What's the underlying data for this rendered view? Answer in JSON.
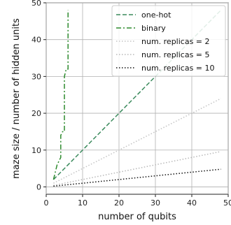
{
  "chart_data": {
    "type": "line",
    "title": "",
    "xlabel": "number of qubits",
    "ylabel": "maze size / number of hidden units",
    "xlim": [
      0,
      50
    ],
    "ylim": [
      -2,
      50
    ],
    "xticks": [
      0,
      10,
      20,
      30,
      40,
      50
    ],
    "yticks": [
      0,
      10,
      20,
      30,
      40,
      50
    ],
    "grid": true,
    "legend_position": "top-right",
    "series": [
      {
        "name": "one-hot",
        "color": "#3a8a5c",
        "style": "dashed",
        "x": [
          2,
          48
        ],
        "y": [
          2,
          48
        ]
      },
      {
        "name": "binary",
        "color": "#2e8b2e",
        "style": "dashdot",
        "x": [
          2,
          3,
          3,
          4,
          4,
          4.5,
          5,
          5,
          5,
          5.5,
          6,
          6
        ],
        "y": [
          2,
          6,
          6,
          8,
          14,
          15,
          15,
          30,
          30,
          32,
          32,
          48
        ]
      },
      {
        "name": "num. replicas = 2",
        "color": "#c4c4c4",
        "style": "dotted",
        "x": [
          2,
          48
        ],
        "y": [
          1,
          24
        ]
      },
      {
        "name": "num. replicas = 5",
        "color": "#b8b8b8",
        "style": "dotted",
        "x": [
          2,
          48
        ],
        "y": [
          0.4,
          9.6
        ]
      },
      {
        "name": "num. replicas = 10",
        "color": "#111111",
        "style": "dotted",
        "x": [
          2,
          48
        ],
        "y": [
          0.2,
          4.8
        ]
      }
    ]
  }
}
